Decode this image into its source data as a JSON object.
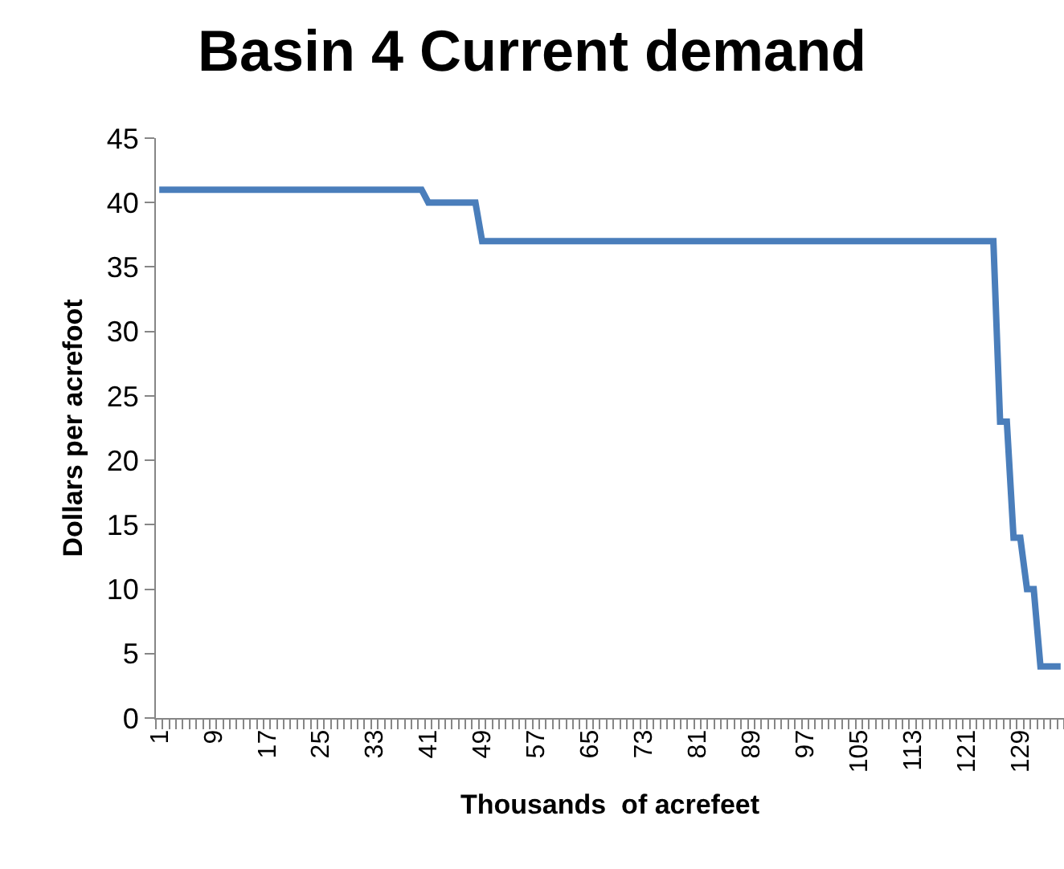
{
  "chart_data": {
    "type": "line",
    "title": "Basin 4 Current demand",
    "xlabel": "Thousands  of acrefeet",
    "ylabel": "Dollars per acrefoot",
    "categories": [
      "1",
      null,
      null,
      null,
      null,
      null,
      null,
      null,
      "9",
      null,
      null,
      null,
      null,
      null,
      null,
      null,
      "17",
      null,
      null,
      null,
      null,
      null,
      null,
      null,
      "25",
      null,
      null,
      null,
      null,
      null,
      null,
      null,
      "33",
      null,
      null,
      null,
      null,
      null,
      null,
      null,
      "41",
      null,
      null,
      null,
      null,
      null,
      null,
      null,
      "49",
      null,
      null,
      null,
      null,
      null,
      null,
      null,
      "57",
      null,
      null,
      null,
      null,
      null,
      null,
      null,
      "65",
      null,
      null,
      null,
      null,
      null,
      null,
      null,
      "73",
      null,
      null,
      null,
      null,
      null,
      null,
      null,
      "81",
      null,
      null,
      null,
      null,
      null,
      null,
      null,
      "89",
      null,
      null,
      null,
      null,
      null,
      null,
      null,
      "97",
      null,
      null,
      null,
      null,
      null,
      null,
      null,
      "105",
      null,
      null,
      null,
      null,
      null,
      null,
      null,
      "113",
      null,
      null,
      null,
      null,
      null,
      null,
      null,
      "121",
      null,
      null,
      null,
      null,
      null,
      null,
      null,
      "129",
      null,
      null,
      null,
      null,
      null,
      null
    ],
    "series": [
      {
        "color": "#4a7ebb",
        "values": [
          41,
          41,
          41,
          41,
          41,
          41,
          41,
          41,
          41,
          41,
          41,
          41,
          41,
          41,
          41,
          41,
          41,
          41,
          41,
          41,
          41,
          41,
          41,
          41,
          41,
          41,
          41,
          41,
          41,
          41,
          41,
          41,
          41,
          41,
          41,
          41,
          41,
          41,
          41,
          41,
          40,
          40,
          40,
          40,
          40,
          40,
          40,
          40,
          37,
          37,
          37,
          37,
          37,
          37,
          37,
          37,
          37,
          37,
          37,
          37,
          37,
          37,
          37,
          37,
          37,
          37,
          37,
          37,
          37,
          37,
          37,
          37,
          37,
          37,
          37,
          37,
          37,
          37,
          37,
          37,
          37,
          37,
          37,
          37,
          37,
          37,
          37,
          37,
          37,
          37,
          37,
          37,
          37,
          37,
          37,
          37,
          37,
          37,
          37,
          37,
          37,
          37,
          37,
          37,
          37,
          37,
          37,
          37,
          37,
          37,
          37,
          37,
          37,
          37,
          37,
          37,
          37,
          37,
          37,
          37,
          37,
          37,
          37,
          37,
          37,
          23,
          23,
          14,
          14,
          10,
          10,
          4,
          4,
          4,
          4
        ]
      }
    ],
    "ylim": [
      0,
      45
    ],
    "yticks": [
      0,
      5,
      10,
      15,
      20,
      25,
      30,
      35,
      40,
      45
    ],
    "grid": false,
    "marker": "none",
    "line_style": "solid"
  }
}
